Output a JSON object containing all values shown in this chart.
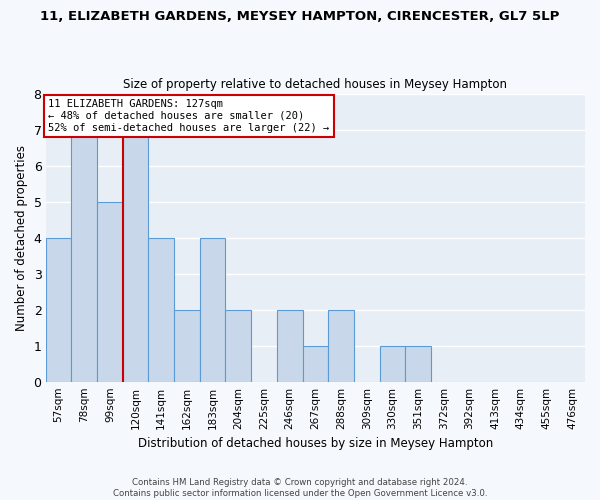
{
  "title": "11, ELIZABETH GARDENS, MEYSEY HAMPTON, CIRENCESTER, GL7 5LP",
  "subtitle": "Size of property relative to detached houses in Meysey Hampton",
  "xlabel": "Distribution of detached houses by size in Meysey Hampton",
  "ylabel": "Number of detached properties",
  "bar_labels": [
    "57sqm",
    "78sqm",
    "99sqm",
    "120sqm",
    "141sqm",
    "162sqm",
    "183sqm",
    "204sqm",
    "225sqm",
    "246sqm",
    "267sqm",
    "288sqm",
    "309sqm",
    "330sqm",
    "351sqm",
    "372sqm",
    "392sqm",
    "413sqm",
    "434sqm",
    "455sqm",
    "476sqm"
  ],
  "bar_values": [
    4,
    7,
    5,
    7,
    4,
    2,
    4,
    2,
    0,
    2,
    1,
    2,
    0,
    1,
    1,
    0,
    0,
    0,
    0,
    0,
    0
  ],
  "bar_color": "#c8d8ea",
  "bar_edge_color": "#5b9bd5",
  "reference_line_color": "#cc0000",
  "reference_line_x": 2.5,
  "ylim": [
    0,
    8
  ],
  "yticks": [
    0,
    1,
    2,
    3,
    4,
    5,
    6,
    7,
    8
  ],
  "annotation_text": "11 ELIZABETH GARDENS: 127sqm\n← 48% of detached houses are smaller (20)\n52% of semi-detached houses are larger (22) →",
  "annotation_box_facecolor": "#ffffff",
  "annotation_box_edgecolor": "#cc0000",
  "footer_text": "Contains HM Land Registry data © Crown copyright and database right 2024.\nContains public sector information licensed under the Open Government Licence v3.0.",
  "plot_bg_color": "#e8eef5",
  "fig_bg_color": "#f5f8fc",
  "grid_color": "#ffffff",
  "figsize": [
    6.0,
    5.0
  ],
  "dpi": 100
}
